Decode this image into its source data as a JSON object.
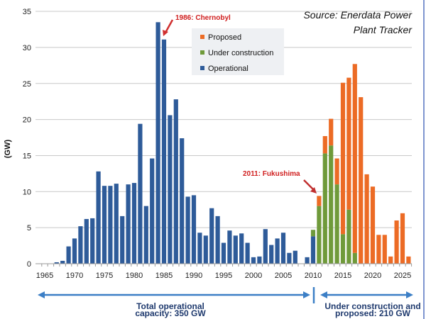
{
  "chart_data": {
    "type": "bar",
    "stacked": true,
    "title": "",
    "source": [
      "Source: Enerdata Power",
      "Plant Tracker"
    ],
    "ylabel": "(GW)",
    "xlabel": "",
    "ylim": [
      0,
      35
    ],
    "yticks": [
      0,
      5,
      10,
      15,
      20,
      25,
      30,
      35
    ],
    "xlim": [
      1965,
      2027
    ],
    "xticks": [
      1965,
      1970,
      1975,
      1980,
      1985,
      1990,
      1995,
      2000,
      2005,
      2010,
      2015,
      2020,
      2025
    ],
    "grid": true,
    "legend": {
      "placement": "top-center",
      "entries": [
        "Proposed",
        "Under construction",
        "Operational"
      ]
    },
    "x": [
      1967,
      1968,
      1969,
      1970,
      1971,
      1972,
      1973,
      1974,
      1975,
      1976,
      1977,
      1978,
      1979,
      1980,
      1981,
      1982,
      1983,
      1984,
      1985,
      1986,
      1987,
      1988,
      1989,
      1990,
      1991,
      1992,
      1993,
      1994,
      1995,
      1996,
      1997,
      1998,
      1999,
      2000,
      2001,
      2002,
      2003,
      2004,
      2005,
      2006,
      2007,
      2008,
      2009,
      2010,
      2011,
      2012,
      2013,
      2014,
      2015,
      2016,
      2017,
      2018,
      2019,
      2020,
      2021,
      2022,
      2023,
      2024,
      2025,
      2026
    ],
    "series": [
      {
        "name": "Operational",
        "color": "#2e5b99",
        "values": [
          0.2,
          0.4,
          2.4,
          3.5,
          5.2,
          6.2,
          6.3,
          12.8,
          10.8,
          10.8,
          11.1,
          6.6,
          11.0,
          11.2,
          19.4,
          8.0,
          14.6,
          33.5,
          31.1,
          20.6,
          22.8,
          17.4,
          9.3,
          9.5,
          4.3,
          3.9,
          7.7,
          6.6,
          2.9,
          4.6,
          3.9,
          4.2,
          2.9,
          0.9,
          1.0,
          4.8,
          2.6,
          3.5,
          4.3,
          1.5,
          1.8,
          0,
          0.9,
          3.8,
          0,
          0,
          0,
          0,
          0,
          0,
          0,
          0,
          0,
          0,
          0,
          0,
          0,
          0,
          0,
          0
        ]
      },
      {
        "name": "Under construction",
        "color": "#6f9a3a",
        "values": [
          0,
          0,
          0,
          0,
          0,
          0,
          0,
          0,
          0,
          0,
          0,
          0,
          0,
          0,
          0,
          0,
          0,
          0,
          0,
          0,
          0,
          0,
          0,
          0,
          0,
          0,
          0,
          0,
          0,
          0,
          0,
          0,
          0,
          0,
          0,
          0,
          0,
          0,
          0,
          0,
          0,
          0,
          0,
          0.9,
          8.0,
          15.3,
          16.4,
          11.0,
          4.1,
          7.5,
          1.5,
          0,
          0,
          0,
          0,
          0,
          0,
          0,
          0,
          0
        ]
      },
      {
        "name": "Proposed",
        "color": "#ec6b25",
        "values": [
          0,
          0,
          0,
          0,
          0,
          0,
          0,
          0,
          0,
          0,
          0,
          0,
          0,
          0,
          0,
          0,
          0,
          0,
          0,
          0,
          0,
          0,
          0,
          0,
          0,
          0,
          0,
          0,
          0,
          0,
          0,
          0,
          0,
          0,
          0,
          0,
          0,
          0,
          0,
          0,
          0,
          0,
          0,
          0,
          1.4,
          2.4,
          3.7,
          3.6,
          21.0,
          18.3,
          26.2,
          23.1,
          12.4,
          10.7,
          4.0,
          4.0,
          1.0,
          6.0,
          7.0,
          1.0
        ]
      }
    ],
    "annotations": [
      {
        "text": "1986: Chernobyl",
        "x": 1985
      },
      {
        "text": "2011: Fukushima",
        "x": 2011
      }
    ],
    "footer": {
      "left": [
        "Total operational",
        "capacity:  350 GW"
      ],
      "right": [
        "Under construction and",
        "proposed: 210 GW"
      ]
    }
  }
}
